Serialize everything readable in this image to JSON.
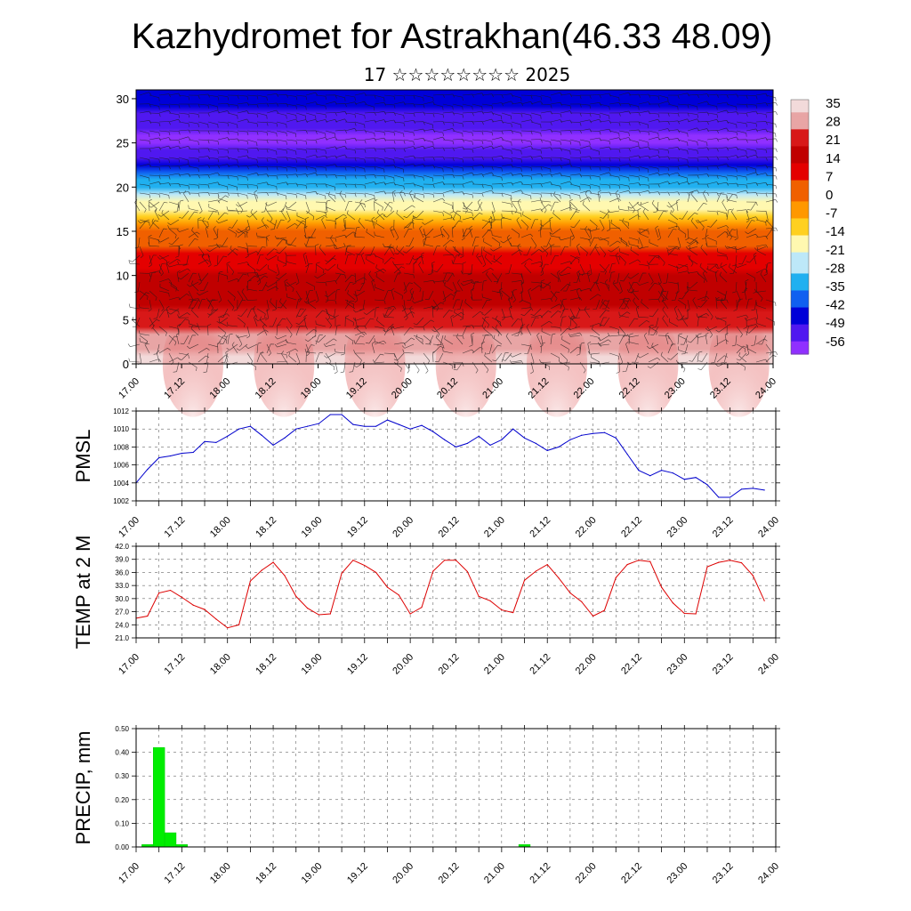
{
  "header": {
    "title": "Kazhydromet for Astrakhan(46.33 48.09)",
    "subtitle": "17 ☆☆☆☆☆☆☆☆ 2025"
  },
  "colors": {
    "pressure_line": "#0000cc",
    "temperature_line": "#dd0000",
    "precip_bar": "#00ee00",
    "colormap": [
      "#f2dada",
      "#e8a5a5",
      "#d81818",
      "#c00000",
      "#e40000",
      "#f06000",
      "#ff9800",
      "#ffd020",
      "#fff8b0",
      "#bde8f8",
      "#20b0f0",
      "#1060f0",
      "#0000d8",
      "#5018f0",
      "#9030ff"
    ]
  },
  "x_ticks": [
    "17.00",
    "17.12",
    "18.00",
    "18.12",
    "19.00",
    "19.12",
    "20.00",
    "20.12",
    "21.00",
    "21.12",
    "22.00",
    "22.12",
    "23.00",
    "23.12",
    "24.00"
  ],
  "chart_data": [
    {
      "type": "heatmap",
      "name": "temperature_wind_cross_section",
      "title": "Kazhydromet for Astrakhan(46.33 48.09)",
      "subtitle": "17 ☆☆☆☆☆☆☆☆ 2025",
      "x_ticks": [
        "17.00",
        "17.12",
        "18.00",
        "18.12",
        "19.00",
        "19.12",
        "20.00",
        "20.12",
        "21.00",
        "21.12",
        "22.00",
        "22.12",
        "23.00",
        "23.12",
        "24.00"
      ],
      "y_ticks": [
        "0",
        "5",
        "10",
        "15",
        "20",
        "25",
        "30"
      ],
      "ylim": [
        0,
        31
      ],
      "colorbar_labels": [
        "35",
        "28",
        "21",
        "14",
        "7",
        "0",
        "-7",
        "-14",
        "-21",
        "-28",
        "-35",
        "-42",
        "-49",
        "-56"
      ],
      "profile_levels_km": [
        0,
        5,
        10,
        15,
        20,
        25,
        30
      ],
      "profile_temperature_c": [
        35,
        21,
        14,
        0,
        -28,
        -56,
        -42
      ]
    },
    {
      "type": "line",
      "name": "pmsl",
      "ylabel": "PMSL",
      "ylim": [
        1002,
        1012
      ],
      "y_ticks": [
        "1002",
        "1004",
        "1006",
        "1008",
        "1010",
        "1012"
      ],
      "x_ticks": [
        "17.00",
        "17.12",
        "18.00",
        "18.12",
        "19.00",
        "19.12",
        "20.00",
        "20.12",
        "21.00",
        "21.12",
        "22.00",
        "22.12",
        "23.00",
        "23.12",
        "24.00"
      ],
      "x_hours": [
        0,
        3,
        6,
        9,
        12,
        15,
        18,
        21,
        24,
        27,
        30,
        33,
        36,
        39,
        42,
        45,
        48,
        51,
        54,
        57,
        60,
        63,
        66,
        69,
        72,
        75,
        78,
        81,
        84,
        87,
        90,
        93,
        96,
        99,
        102,
        105,
        108,
        111,
        114,
        117,
        120,
        123,
        126,
        129,
        132,
        135,
        138,
        141,
        144,
        147,
        150,
        153,
        156,
        159,
        162,
        165
      ],
      "values": [
        1004.0,
        1005.5,
        1006.8,
        1007.0,
        1007.3,
        1007.4,
        1008.6,
        1008.5,
        1009.2,
        1010.0,
        1010.3,
        1009.3,
        1008.2,
        1009.0,
        1010.0,
        1010.3,
        1010.6,
        1011.6,
        1011.6,
        1010.5,
        1010.3,
        1010.3,
        1011.0,
        1010.5,
        1010.0,
        1010.4,
        1009.7,
        1008.8,
        1008.0,
        1008.4,
        1009.2,
        1008.2,
        1008.8,
        1010.0,
        1009.0,
        1008.4,
        1007.6,
        1008.0,
        1008.8,
        1009.3,
        1009.5,
        1009.6,
        1009.0,
        1007.2,
        1005.4,
        1004.8,
        1005.4,
        1005.1,
        1004.4,
        1004.6,
        1003.8,
        1002.4,
        1002.4,
        1003.3,
        1003.4,
        1003.2
      ]
    },
    {
      "type": "line",
      "name": "temperature_2m",
      "ylabel": "TEMP at 2 M",
      "ylim": [
        21.0,
        42.0
      ],
      "y_ticks": [
        "21.0",
        "24.0",
        "27.0",
        "30.0",
        "33.0",
        "36.0",
        "39.0",
        "42.0"
      ],
      "x_ticks": [
        "17.00",
        "17.12",
        "18.00",
        "18.12",
        "19.00",
        "19.12",
        "20.00",
        "20.12",
        "21.00",
        "21.12",
        "22.00",
        "22.12",
        "23.00",
        "23.12",
        "24.00"
      ],
      "x_hours": [
        0,
        3,
        6,
        9,
        12,
        15,
        18,
        21,
        24,
        27,
        30,
        33,
        36,
        39,
        42,
        45,
        48,
        51,
        54,
        57,
        60,
        63,
        66,
        69,
        72,
        75,
        78,
        81,
        84,
        87,
        90,
        93,
        96,
        99,
        102,
        105,
        108,
        111,
        114,
        117,
        120,
        123,
        126,
        129,
        132,
        135,
        138,
        141,
        144,
        147,
        150,
        153,
        156,
        159,
        162,
        165
      ],
      "values": [
        25.5,
        26.0,
        31.3,
        31.9,
        30.3,
        28.5,
        27.5,
        25.3,
        23.3,
        24.0,
        34.0,
        36.5,
        38.3,
        35.3,
        30.5,
        27.8,
        26.3,
        26.5,
        35.8,
        38.8,
        37.6,
        36.0,
        32.6,
        30.8,
        26.5,
        28.0,
        36.3,
        38.8,
        38.8,
        36.2,
        30.5,
        29.5,
        27.4,
        26.8,
        34.2,
        36.3,
        37.8,
        34.7,
        31.3,
        29.3,
        26.0,
        27.3,
        34.8,
        37.8,
        38.8,
        38.5,
        32.6,
        29.0,
        26.6,
        26.5,
        37.3,
        38.3,
        38.8,
        38.2,
        35.3,
        29.5
      ]
    },
    {
      "type": "bar",
      "name": "precipitation",
      "ylabel": "PRECIP, mm",
      "ylim": [
        0.0,
        0.5
      ],
      "y_ticks": [
        "0.00",
        "0.10",
        "0.20",
        "0.30",
        "0.40",
        "0.50"
      ],
      "x_ticks": [
        "17.00",
        "17.12",
        "18.00",
        "18.12",
        "19.00",
        "19.12",
        "20.00",
        "20.12",
        "21.00",
        "21.12",
        "22.00",
        "22.12",
        "23.00",
        "23.12",
        "24.00"
      ],
      "x_hours": [
        3,
        6,
        9,
        12,
        102
      ],
      "values": [
        0.01,
        0.42,
        0.06,
        0.01,
        0.01
      ]
    }
  ]
}
